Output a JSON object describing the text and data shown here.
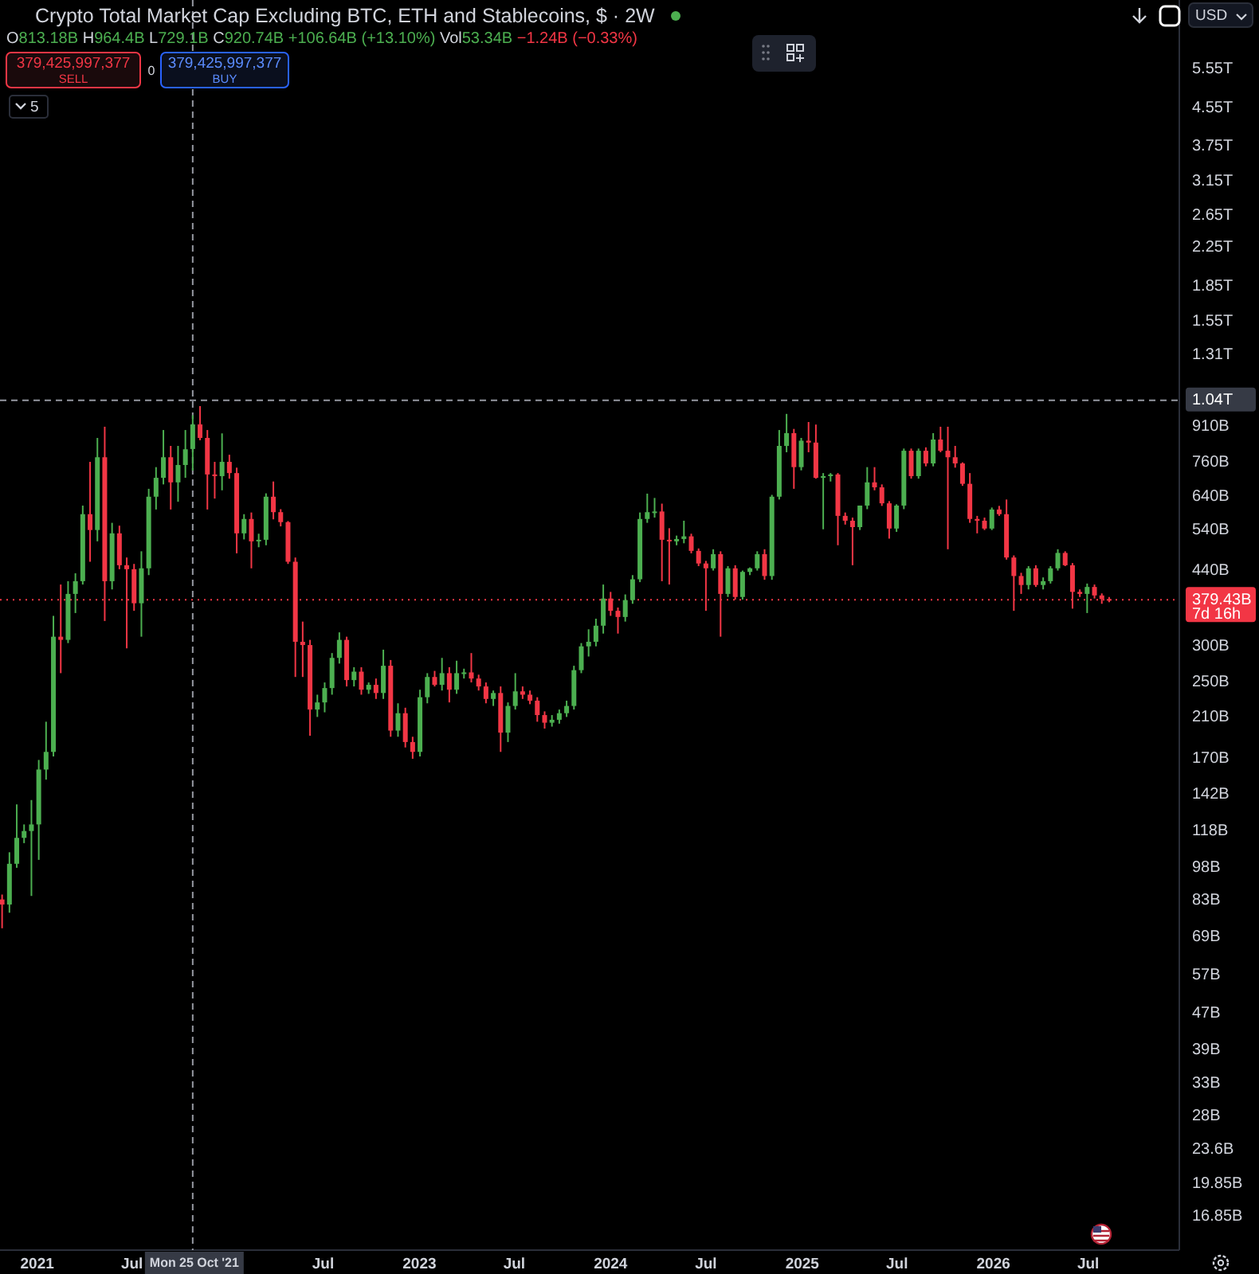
{
  "chart_data": {
    "type": "candlestick",
    "title": "Crypto Total Market Cap Excluding BTC, ETH and Stablecoins, $ · 2W",
    "log": "y",
    "colors": [
      "#f23645",
      "#4caf50",
      "#4caf50",
      "#4caf50",
      "#4caf50",
      "#4caf50",
      "#4caf50",
      "#4caf50",
      "#f23645",
      "#4caf50",
      "#4caf50",
      "#4caf50",
      "#f23645",
      "#4caf50",
      "#f23645",
      "#4caf50",
      "#f23645",
      "#f23645",
      "#f23645",
      "#4caf50",
      "#4caf50",
      "#4caf50",
      "#4caf50",
      "#f23645",
      "#4caf50",
      "#4caf50",
      "#4caf50",
      "#f23645",
      "#f23645",
      "#f23645",
      "#4caf50",
      "#f23645",
      "#f23645",
      "#4caf50",
      "#f23645",
      "#4caf50",
      "#4caf50",
      "#f23645",
      "#f23645",
      "#f23645",
      "#f23645",
      "#f23645",
      "#f23645",
      "#4caf50",
      "#4caf50",
      "#4caf50",
      "#4caf50",
      "#f23645",
      "#4caf50",
      "#f23645",
      "#4caf50",
      "#f23645",
      "#4caf50",
      "#f23645",
      "#4caf50",
      "#f23645",
      "#f23645",
      "#4caf50",
      "#4caf50",
      "#f23645",
      "#4caf50",
      "#f23645",
      "#4caf50",
      "#4caf50",
      "#f23645",
      "#f23645",
      "#f23645",
      "#4caf50",
      "#f23645",
      "#4caf50",
      "#4caf50",
      "#f23645",
      "#f23645",
      "#f23645",
      "#f23645",
      "#4caf50",
      "#4caf50",
      "#4caf50",
      "#4caf50",
      "#4caf50",
      "#4caf50",
      "#4caf50",
      "#4caf50",
      "#f23645",
      "#f23645",
      "#4caf50",
      "#4caf50",
      "#4caf50",
      "#4caf50",
      "#4caf50",
      "#f23645",
      "#f23645",
      "#4caf50",
      "#4caf50",
      "#f23645",
      "#f23645",
      "#f23645",
      "#4caf50",
      "#f23645",
      "#4caf50",
      "#f23645",
      "#4caf50",
      "#4caf50",
      "#4caf50",
      "#f23645",
      "#4caf50",
      "#4caf50",
      "#4caf50",
      "#f23645",
      "#4caf50",
      "#f23645",
      "#f23645",
      "#4caf50",
      "#4caf50",
      "#f23645",
      "#f23645",
      "#f23645",
      "#4caf50",
      "#4caf50",
      "#f23645",
      "#f23645",
      "#f23645",
      "#4caf50",
      "#4caf50",
      "#f23645",
      "#4caf50",
      "#f23645",
      "#4caf50",
      "#f23645",
      "#f23645",
      "#f23645",
      "#f23645",
      "#f23645",
      "#f23645",
      "#f23645",
      "#4caf50",
      "#f23645",
      "#f23645",
      "#f23645",
      "#f23645",
      "#4caf50",
      "#f23645",
      "#4caf50",
      "#4caf50",
      "#4caf50",
      "#f23645",
      "#f23645",
      "#f23645",
      "#4caf50",
      "#f23645",
      "#f23645",
      "#f23645"
    ],
    "xlim": [
      "2020-10-22",
      "2026-12-22"
    ],
    "xticks": [
      {
        "value": "2021-01-01",
        "label": "2021"
      },
      {
        "value": "2021-07-01",
        "label": "Jul"
      },
      {
        "value": "2022-07-01",
        "label": "Jul"
      },
      {
        "value": "2023-01-01",
        "label": "2023"
      },
      {
        "value": "2023-07-01",
        "label": "Jul"
      },
      {
        "value": "2024-01-01",
        "label": "2024"
      },
      {
        "value": "2024-07-01",
        "label": "Jul"
      },
      {
        "value": "2025-01-01",
        "label": "2025"
      },
      {
        "value": "2025-07-01",
        "label": "Jul"
      },
      {
        "value": "2026-01-01",
        "label": "2026"
      },
      {
        "value": "2026-07-01",
        "label": "Jul"
      }
    ],
    "ylim": [
      14200000000.0,
      7860000000000.0
    ],
    "yticks": [
      {
        "value": 5550000000000.0,
        "label": "5.55T"
      },
      {
        "value": 4550000000000.0,
        "label": "4.55T"
      },
      {
        "value": 3750000000000.0,
        "label": "3.75T"
      },
      {
        "value": 3150000000000.0,
        "label": "3.15T"
      },
      {
        "value": 2650000000000.0,
        "label": "2.65T"
      },
      {
        "value": 2250000000000.0,
        "label": "2.25T"
      },
      {
        "value": 1850000000000.0,
        "label": "1.85T"
      },
      {
        "value": 1550000000000.0,
        "label": "1.55T"
      },
      {
        "value": 1310000000000.0,
        "label": "1.31T"
      },
      {
        "value": 910000000000.0,
        "label": "910B"
      },
      {
        "value": 760000000000.0,
        "label": "760B"
      },
      {
        "value": 640000000000.0,
        "label": "640B"
      },
      {
        "value": 540000000000.0,
        "label": "540B"
      },
      {
        "value": 440000000000.0,
        "label": "440B"
      },
      {
        "value": 300000000000.0,
        "label": "300B"
      },
      {
        "value": 250000000000.0,
        "label": "250B"
      },
      {
        "value": 210000000000.0,
        "label": "210B"
      },
      {
        "value": 170000000000.0,
        "label": "170B"
      },
      {
        "value": 142000000000.0,
        "label": "142B"
      },
      {
        "value": 118000000000.0,
        "label": "118B"
      },
      {
        "value": 98000000000.0,
        "label": "98B"
      },
      {
        "value": 83000000000.0,
        "label": "83B"
      },
      {
        "value": 69000000000.0,
        "label": "69B"
      },
      {
        "value": 57000000000.0,
        "label": "57B"
      },
      {
        "value": 47000000000.0,
        "label": "47B"
      },
      {
        "value": 39000000000.0,
        "label": "39B"
      },
      {
        "value": 33000000000.0,
        "label": "33B"
      },
      {
        "value": 28000000000.0,
        "label": "28B"
      },
      {
        "value": 23600000000.0,
        "label": "23.6B"
      },
      {
        "value": 19850000000.0,
        "label": "19.85B"
      },
      {
        "value": 16850000000.0,
        "label": "16.85B"
      }
    ],
    "ref_lines": [
      {
        "axis": "x",
        "value": "2021-10-25",
        "label": "Mon 25 Oct '21",
        "color": "#9598a1",
        "line_style": "dashed"
      },
      {
        "axis": "y",
        "value": 1040000000000.0,
        "label": "1.04T",
        "color": "#9598a1",
        "line_style": "dashed"
      },
      {
        "axis": "y",
        "value": 379430000000.0,
        "label": "379.43B",
        "color": "#f23645",
        "line_style": "dotted"
      }
    ],
    "annotations": [
      "O813.18B H964.4B L729.1B C920.74B +106.64B (+13.10%)",
      "Vol53.34B",
      "−1.24B (−0.33%)",
      "379,425,997,377",
      "SELL",
      "0",
      "379,425,997,377",
      "BUY",
      "5",
      "USD",
      "7d 16h"
    ],
    "x": [
      "2020-10-26",
      "2020-11-09",
      "2020-11-23",
      "2020-12-07",
      "2020-12-21",
      "2021-01-04",
      "2021-01-18",
      "2021-02-01",
      "2021-02-15",
      "2021-03-01",
      "2021-03-15",
      "2021-03-29",
      "2021-04-12",
      "2021-04-26",
      "2021-05-10",
      "2021-05-24",
      "2021-06-07",
      "2021-06-21",
      "2021-07-05",
      "2021-07-19",
      "2021-08-02",
      "2021-08-16",
      "2021-08-30",
      "2021-09-13",
      "2021-09-27",
      "2021-10-11",
      "2021-10-25",
      "2021-11-08",
      "2021-11-22",
      "2021-12-06",
      "2021-12-20",
      "2022-01-03",
      "2022-01-17",
      "2022-01-31",
      "2022-02-14",
      "2022-02-28",
      "2022-03-14",
      "2022-03-28",
      "2022-04-11",
      "2022-04-25",
      "2022-05-09",
      "2022-05-23",
      "2022-06-06",
      "2022-06-20",
      "2022-07-04",
      "2022-07-18",
      "2022-08-01",
      "2022-08-15",
      "2022-08-29",
      "2022-09-12",
      "2022-09-26",
      "2022-10-10",
      "2022-10-24",
      "2022-11-07",
      "2022-11-21",
      "2022-12-05",
      "2022-12-19",
      "2023-01-02",
      "2023-01-16",
      "2023-01-30",
      "2023-02-13",
      "2023-02-27",
      "2023-03-13",
      "2023-03-27",
      "2023-04-10",
      "2023-04-24",
      "2023-05-08",
      "2023-05-22",
      "2023-06-05",
      "2023-06-19",
      "2023-07-03",
      "2023-07-17",
      "2023-07-31",
      "2023-08-14",
      "2023-08-28",
      "2023-09-11",
      "2023-09-25",
      "2023-10-09",
      "2023-10-23",
      "2023-11-06",
      "2023-11-20",
      "2023-12-04",
      "2023-12-18",
      "2024-01-01",
      "2024-01-15",
      "2024-01-29",
      "2024-02-12",
      "2024-02-26",
      "2024-03-11",
      "2024-03-25",
      "2024-04-08",
      "2024-04-22",
      "2024-05-06",
      "2024-05-20",
      "2024-06-03",
      "2024-06-17",
      "2024-07-01",
      "2024-07-15",
      "2024-07-29",
      "2024-08-12",
      "2024-08-26",
      "2024-09-09",
      "2024-09-23",
      "2024-10-07",
      "2024-10-21",
      "2024-11-04",
      "2024-11-18",
      "2024-12-02",
      "2024-12-16",
      "2024-12-30",
      "2025-01-13",
      "2025-01-27",
      "2025-02-10",
      "2025-02-24",
      "2025-03-10",
      "2025-03-24",
      "2025-04-07",
      "2025-04-21",
      "2025-05-05",
      "2025-05-19",
      "2025-06-02",
      "2025-06-16",
      "2025-06-30",
      "2025-07-14",
      "2025-07-28",
      "2025-08-11",
      "2025-08-25",
      "2025-09-08",
      "2025-09-22",
      "2025-10-06",
      "2025-10-20",
      "2025-11-03",
      "2025-11-17",
      "2025-12-01",
      "2025-12-15",
      "2025-12-29",
      "2026-01-12",
      "2026-01-26",
      "2026-02-09",
      "2026-02-23",
      "2026-03-09",
      "2026-03-23",
      "2026-04-06",
      "2026-04-20",
      "2026-05-04",
      "2026-05-18",
      "2026-06-01",
      "2026-06-15",
      "2026-06-29",
      "2026-07-13",
      "2026-07-27",
      "2026-08-10"
    ],
    "ohlc": [
      [
        83500000000.0,
        85600000000.0,
        72200000000.0,
        81400000000.0
      ],
      [
        81400000000.0,
        106000000000.0,
        78100000000.0,
        100000000000.0
      ],
      [
        100000000000.0,
        135000000000.0,
        98000000000.0,
        114000000000.0
      ],
      [
        114000000000.0,
        122000000000.0,
        111000000000.0,
        118000000000.0
      ],
      [
        118000000000.0,
        138000000000.0,
        85000000000.0,
        122000000000.0
      ],
      [
        122000000000.0,
        169000000000.0,
        102000000000.0,
        161000000000.0
      ],
      [
        161000000000.0,
        205000000000.0,
        153000000000.0,
        176000000000.0
      ],
      [
        176000000000.0,
        350000000000.0,
        172000000000.0,
        315000000000.0
      ],
      [
        315000000000.0,
        410000000000.0,
        262000000000.0,
        310000000000.0
      ],
      [
        310000000000.0,
        417000000000.0,
        305000000000.0,
        391000000000.0
      ],
      [
        391000000000.0,
        434000000000.0,
        355000000000.0,
        417000000000.0
      ],
      [
        417000000000.0,
        611000000000.0,
        410000000000.0,
        585000000000.0
      ],
      [
        585000000000.0,
        762000000000.0,
        460000000000.0,
        540000000000.0
      ],
      [
        540000000000.0,
        860000000000.0,
        510000000000.0,
        780000000000.0
      ],
      [
        780000000000.0,
        910000000000.0,
        341000000000.0,
        417000000000.0
      ],
      [
        417000000000.0,
        560000000000.0,
        400000000000.0,
        531000000000.0
      ],
      [
        531000000000.0,
        552000000000.0,
        443000000000.0,
        452000000000.0
      ],
      [
        452000000000.0,
        470000000000.0,
        297000000000.0,
        443000000000.0
      ],
      [
        443000000000.0,
        455000000000.0,
        359000000000.0,
        373000000000.0
      ],
      [
        373000000000.0,
        485000000000.0,
        315000000000.0,
        445000000000.0
      ],
      [
        445000000000.0,
        665000000000.0,
        430000000000.0,
        639000000000.0
      ],
      [
        639000000000.0,
        742000000000.0,
        599000000000.0,
        703000000000.0
      ],
      [
        703000000000.0,
        895000000000.0,
        680000000000.0,
        780000000000.0
      ],
      [
        780000000000.0,
        826000000000.0,
        599000000000.0,
        687000000000.0
      ],
      [
        687000000000.0,
        826000000000.0,
        623000000000.0,
        750000000000.0
      ],
      [
        750000000000.0,
        895000000000.0,
        703000000000.0,
        812000000000.0
      ],
      [
        813180000000.0,
        964400000000.0,
        729100000000.0,
        920740000000.0
      ],
      [
        920740000000.0,
        1010000000000.0,
        850000000000.0,
        860000000000.0
      ],
      [
        860000000000.0,
        895000000000.0,
        599000000000.0,
        715000000000.0
      ],
      [
        715000000000.0,
        762000000000.0,
        633000000000.0,
        709000000000.0
      ],
      [
        709000000000.0,
        880000000000.0,
        660000000000.0,
        762000000000.0
      ],
      [
        762000000000.0,
        790000000000.0,
        700000000000.0,
        720000000000.0
      ],
      [
        720000000000.0,
        740000000000.0,
        480000000000.0,
        531000000000.0
      ],
      [
        531000000000.0,
        585000000000.0,
        515000000000.0,
        571000000000.0
      ],
      [
        571000000000.0,
        590000000000.0,
        445000000000.0,
        510000000000.0
      ],
      [
        510000000000.0,
        530000000000.0,
        495000000000.0,
        514000000000.0
      ],
      [
        514000000000.0,
        650000000000.0,
        500000000000.0,
        639000000000.0
      ],
      [
        639000000000.0,
        690000000000.0,
        570000000000.0,
        591000000000.0
      ],
      [
        591000000000.0,
        600000000000.0,
        550000000000.0,
        562000000000.0
      ],
      [
        562000000000.0,
        565000000000.0,
        455000000000.0,
        460000000000.0
      ],
      [
        460000000000.0,
        470000000000.0,
        257000000000.0,
        307000000000.0
      ],
      [
        307000000000.0,
        340000000000.0,
        257000000000.0,
        302000000000.0
      ],
      [
        302000000000.0,
        310000000000.0,
        191000000000.0,
        218000000000.0
      ],
      [
        218000000000.0,
        235000000000.0,
        210000000000.0,
        226000000000.0
      ],
      [
        226000000000.0,
        250000000000.0,
        215000000000.0,
        243000000000.0
      ],
      [
        243000000000.0,
        290000000000.0,
        235000000000.0,
        283000000000.0
      ],
      [
        283000000000.0,
        322000000000.0,
        275000000000.0,
        310000000000.0
      ],
      [
        310000000000.0,
        315000000000.0,
        245000000000.0,
        253000000000.0
      ],
      [
        253000000000.0,
        270000000000.0,
        245000000000.0,
        264000000000.0
      ],
      [
        264000000000.0,
        270000000000.0,
        235000000000.0,
        241000000000.0
      ],
      [
        241000000000.0,
        250000000000.0,
        236000000000.0,
        247000000000.0
      ],
      [
        247000000000.0,
        255000000000.0,
        230000000000.0,
        237000000000.0
      ],
      [
        237000000000.0,
        295000000000.0,
        230000000000.0,
        272000000000.0
      ],
      [
        272000000000.0,
        280000000000.0,
        190000000000.0,
        196000000000.0
      ],
      [
        196000000000.0,
        225000000000.0,
        190000000000.0,
        214000000000.0
      ],
      [
        214000000000.0,
        220000000000.0,
        180000000000.0,
        185000000000.0
      ],
      [
        185000000000.0,
        190000000000.0,
        170000000000.0,
        176000000000.0
      ],
      [
        176000000000.0,
        241000000000.0,
        172000000000.0,
        232000000000.0
      ],
      [
        232000000000.0,
        262000000000.0,
        225000000000.0,
        257000000000.0
      ],
      [
        257000000000.0,
        265000000000.0,
        245000000000.0,
        247000000000.0
      ],
      [
        247000000000.0,
        283000000000.0,
        240000000000.0,
        262000000000.0
      ],
      [
        262000000000.0,
        270000000000.0,
        226000000000.0,
        241000000000.0
      ],
      [
        241000000000.0,
        279000000000.0,
        236000000000.0,
        262000000000.0
      ],
      [
        262000000000.0,
        268000000000.0,
        255000000000.0,
        263000000000.0
      ],
      [
        263000000000.0,
        290000000000.0,
        250000000000.0,
        255000000000.0
      ],
      [
        255000000000.0,
        260000000000.0,
        240000000000.0,
        245000000000.0
      ],
      [
        245000000000.0,
        250000000000.0,
        225000000000.0,
        230000000000.0
      ],
      [
        230000000000.0,
        240000000000.0,
        222000000000.0,
        237000000000.0
      ],
      [
        237000000000.0,
        245000000000.0,
        176000000000.0,
        194000000000.0
      ],
      [
        194000000000.0,
        226000000000.0,
        185000000000.0,
        222000000000.0
      ],
      [
        222000000000.0,
        262000000000.0,
        218000000000.0,
        239000000000.0
      ],
      [
        239000000000.0,
        245000000000.0,
        230000000000.0,
        235000000000.0
      ],
      [
        235000000000.0,
        240000000000.0,
        224000000000.0,
        228000000000.0
      ],
      [
        228000000000.0,
        232000000000.0,
        205000000000.0,
        212000000000.0
      ],
      [
        212000000000.0,
        216000000000.0,
        198000000000.0,
        204000000000.0
      ],
      [
        204000000000.0,
        212000000000.0,
        200000000000.0,
        207000000000.0
      ],
      [
        207000000000.0,
        218000000000.0,
        203000000000.0,
        214000000000.0
      ],
      [
        214000000000.0,
        228000000000.0,
        210000000000.0,
        222000000000.0
      ],
      [
        222000000000.0,
        272000000000.0,
        218000000000.0,
        266000000000.0
      ],
      [
        266000000000.0,
        305000000000.0,
        262000000000.0,
        300000000000.0
      ],
      [
        300000000000.0,
        327000000000.0,
        285000000000.0,
        307000000000.0
      ],
      [
        307000000000.0,
        345000000000.0,
        300000000000.0,
        333000000000.0
      ],
      [
        333000000000.0,
        410000000000.0,
        320000000000.0,
        382000000000.0
      ],
      [
        382000000000.0,
        395000000000.0,
        350000000000.0,
        359000000000.0
      ],
      [
        359000000000.0,
        365000000000.0,
        320000000000.0,
        348000000000.0
      ],
      [
        348000000000.0,
        390000000000.0,
        340000000000.0,
        379000000000.0
      ],
      [
        379000000000.0,
        430000000000.0,
        372000000000.0,
        421000000000.0
      ],
      [
        421000000000.0,
        590000000000.0,
        415000000000.0,
        571000000000.0
      ],
      [
        571000000000.0,
        649000000000.0,
        560000000000.0,
        591000000000.0
      ],
      [
        591000000000.0,
        635000000000.0,
        575000000000.0,
        593000000000.0
      ],
      [
        593000000000.0,
        617000000000.0,
        417000000000.0,
        514000000000.0
      ],
      [
        514000000000.0,
        545000000000.0,
        410000000000.0,
        510000000000.0
      ],
      [
        510000000000.0,
        525000000000.0,
        500000000000.0,
        516000000000.0
      ],
      [
        516000000000.0,
        566000000000.0,
        505000000000.0,
        523000000000.0
      ],
      [
        523000000000.0,
        530000000000.0,
        480000000000.0,
        486000000000.0
      ],
      [
        486000000000.0,
        492000000000.0,
        450000000000.0,
        456000000000.0
      ],
      [
        456000000000.0,
        462000000000.0,
        359000000000.0,
        445000000000.0
      ],
      [
        445000000000.0,
        490000000000.0,
        440000000000.0,
        478000000000.0
      ],
      [
        478000000000.0,
        485000000000.0,
        315000000000.0,
        391000000000.0
      ],
      [
        391000000000.0,
        450000000000.0,
        385000000000.0,
        445000000000.0
      ],
      [
        445000000000.0,
        452000000000.0,
        380000000000.0,
        385000000000.0
      ],
      [
        385000000000.0,
        440000000000.0,
        380000000000.0,
        437000000000.0
      ],
      [
        437000000000.0,
        447000000000.0,
        430000000000.0,
        445000000000.0
      ],
      [
        445000000000.0,
        485000000000.0,
        440000000000.0,
        478000000000.0
      ],
      [
        478000000000.0,
        490000000000.0,
        420000000000.0,
        428000000000.0
      ],
      [
        428000000000.0,
        645000000000.0,
        420000000000.0,
        639000000000.0
      ],
      [
        639000000000.0,
        895000000000.0,
        630000000000.0,
        826000000000.0
      ],
      [
        826000000000.0,
        971000000000.0,
        800000000000.0,
        881000000000.0
      ],
      [
        881000000000.0,
        900000000000.0,
        665000000000.0,
        742000000000.0
      ],
      [
        742000000000.0,
        860000000000.0,
        730000000000.0,
        848000000000.0
      ],
      [
        848000000000.0,
        932000000000.0,
        800000000000.0,
        840000000000.0
      ],
      [
        840000000000.0,
        920000000000.0,
        700000000000.0,
        703000000000.0
      ],
      [
        703000000000.0,
        720000000000.0,
        542000000000.0,
        709000000000.0
      ],
      [
        709000000000.0,
        720000000000.0,
        690000000000.0,
        715000000000.0
      ],
      [
        715000000000.0,
        720000000000.0,
        500000000000.0,
        580000000000.0
      ],
      [
        580000000000.0,
        590000000000.0,
        555000000000.0,
        566000000000.0
      ],
      [
        566000000000.0,
        575000000000.0,
        452000000000.0,
        548000000000.0
      ],
      [
        548000000000.0,
        611000000000.0,
        540000000000.0,
        611000000000.0
      ],
      [
        611000000000.0,
        742000000000.0,
        600000000000.0,
        687000000000.0
      ],
      [
        687000000000.0,
        742000000000.0,
        660000000000.0,
        670000000000.0
      ],
      [
        670000000000.0,
        680000000000.0,
        610000000000.0,
        618000000000.0
      ],
      [
        618000000000.0,
        625000000000.0,
        517000000000.0,
        544000000000.0
      ],
      [
        544000000000.0,
        615000000000.0,
        535000000000.0,
        611000000000.0
      ],
      [
        611000000000.0,
        815000000000.0,
        600000000000.0,
        806000000000.0
      ],
      [
        806000000000.0,
        815000000000.0,
        700000000000.0,
        709000000000.0
      ],
      [
        709000000000.0,
        815000000000.0,
        700000000000.0,
        806000000000.0
      ],
      [
        806000000000.0,
        820000000000.0,
        745000000000.0,
        756000000000.0
      ],
      [
        756000000000.0,
        881000000000.0,
        745000000000.0,
        853000000000.0
      ],
      [
        853000000000.0,
        910000000000.0,
        800000000000.0,
        806000000000.0
      ],
      [
        806000000000.0,
        910000000000.0,
        490000000000.0,
        780000000000.0
      ],
      [
        780000000000.0,
        826000000000.0,
        740000000000.0,
        756000000000.0
      ],
      [
        756000000000.0,
        760000000000.0,
        675000000000.0,
        682000000000.0
      ],
      [
        682000000000.0,
        720000000000.0,
        560000000000.0,
        571000000000.0
      ],
      [
        571000000000.0,
        580000000000.0,
        531000000000.0,
        566000000000.0
      ],
      [
        566000000000.0,
        575000000000.0,
        540000000000.0,
        544000000000.0
      ],
      [
        544000000000.0,
        605000000000.0,
        540000000000.0,
        599000000000.0
      ],
      [
        599000000000.0,
        610000000000.0,
        580000000000.0,
        585000000000.0
      ],
      [
        585000000000.0,
        630000000000.0,
        465000000000.0,
        470000000000.0
      ],
      [
        470000000000.0,
        475000000000.0,
        359000000000.0,
        428000000000.0
      ],
      [
        428000000000.0,
        435000000000.0,
        391000000000.0,
        409000000000.0
      ],
      [
        409000000000.0,
        450000000000.0,
        400000000000.0,
        445000000000.0
      ],
      [
        445000000000.0,
        452000000000.0,
        405000000000.0,
        409000000000.0
      ],
      [
        409000000000.0,
        425000000000.0,
        400000000000.0,
        417000000000.0
      ],
      [
        417000000000.0,
        450000000000.0,
        412000000000.0,
        445000000000.0
      ],
      [
        445000000000.0,
        490000000000.0,
        440000000000.0,
        481000000000.0
      ],
      [
        481000000000.0,
        485000000000.0,
        450000000000.0,
        452000000000.0
      ],
      [
        452000000000.0,
        457000000000.0,
        363000000000.0,
        395000000000.0
      ],
      [
        395000000000.0,
        400000000000.0,
        385000000000.0,
        391000000000.0
      ],
      [
        391000000000.0,
        412000000000.0,
        355000000000.0,
        405000000000.0
      ],
      [
        405000000000.0,
        410000000000.0,
        382000000000.0,
        388000000000.0
      ],
      [
        388000000000.0,
        392000000000.0,
        372000000000.0,
        381000000000.0
      ],
      [
        381000000000.0,
        385000000000.0,
        375000000000.0,
        379430000000.0
      ]
    ]
  }
}
